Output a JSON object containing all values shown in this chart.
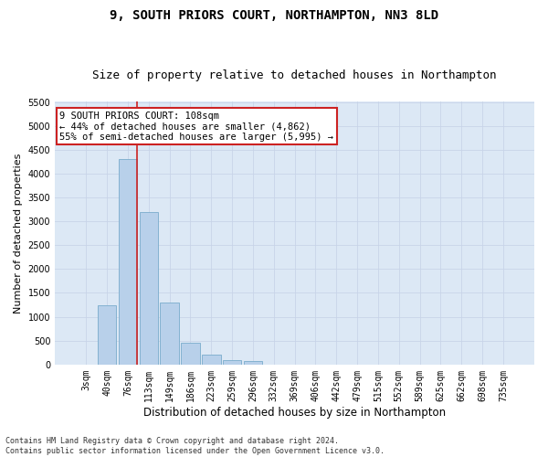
{
  "title_line1": "9, SOUTH PRIORS COURT, NORTHAMPTON, NN3 8LD",
  "title_line2": "Size of property relative to detached houses in Northampton",
  "xlabel": "Distribution of detached houses by size in Northampton",
  "ylabel": "Number of detached properties",
  "footnote": "Contains HM Land Registry data © Crown copyright and database right 2024.\nContains public sector information licensed under the Open Government Licence v3.0.",
  "categories": [
    "3sqm",
    "40sqm",
    "76sqm",
    "113sqm",
    "149sqm",
    "186sqm",
    "223sqm",
    "259sqm",
    "296sqm",
    "332sqm",
    "369sqm",
    "406sqm",
    "442sqm",
    "479sqm",
    "515sqm",
    "552sqm",
    "589sqm",
    "625sqm",
    "662sqm",
    "698sqm",
    "735sqm"
  ],
  "values": [
    0,
    1250,
    4300,
    3200,
    1300,
    450,
    200,
    100,
    70,
    0,
    0,
    0,
    0,
    0,
    0,
    0,
    0,
    0,
    0,
    0,
    0
  ],
  "bar_color": "#b8d0ea",
  "bar_edge_color": "#7aaccc",
  "highlight_bin": 2,
  "highlight_color": "#cc2222",
  "annotation_text": "9 SOUTH PRIORS COURT: 108sqm\n← 44% of detached houses are smaller (4,862)\n55% of semi-detached houses are larger (5,995) →",
  "annotation_box_color": "#ffffff",
  "annotation_box_edge": "#cc2222",
  "ylim": [
    0,
    5500
  ],
  "yticks": [
    0,
    500,
    1000,
    1500,
    2000,
    2500,
    3000,
    3500,
    4000,
    4500,
    5000,
    5500
  ],
  "grid_color": "#c8d4e8",
  "bg_color": "#dce8f5",
  "title1_fontsize": 10,
  "title2_fontsize": 9,
  "xlabel_fontsize": 8.5,
  "ylabel_fontsize": 8,
  "tick_fontsize": 7,
  "annot_fontsize": 7.5
}
